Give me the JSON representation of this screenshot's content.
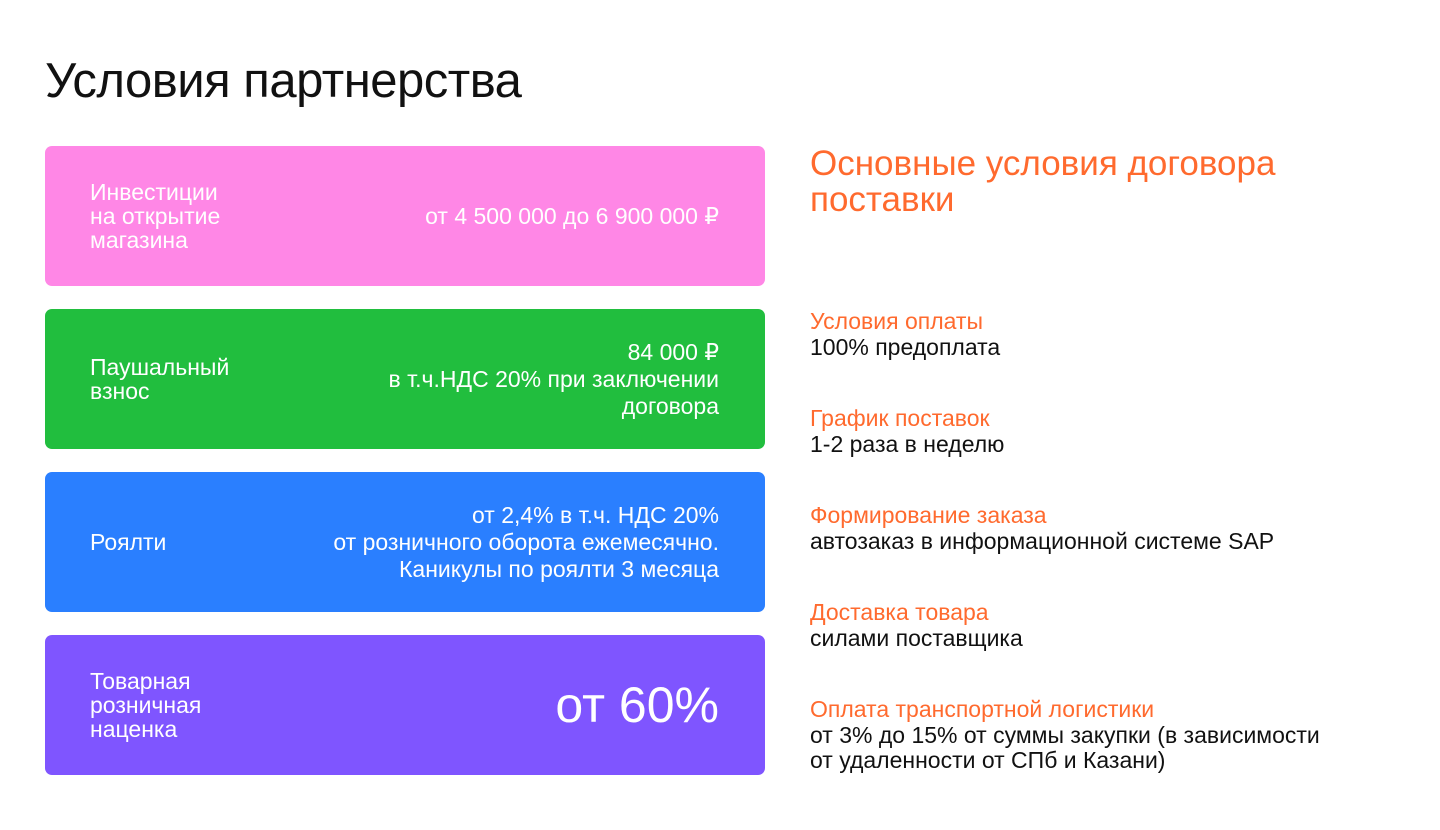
{
  "page": {
    "title": "Условия партнерства"
  },
  "colors": {
    "accent": "#FF6A2E",
    "card_pink": "#FF87E6",
    "card_green": "#21BE3E",
    "card_blue": "#2A7FFF",
    "card_purple": "#7F55FF"
  },
  "cards": [
    {
      "label": "Инвестиции\nна открытие\nмагазина",
      "value": "от 4 500 000 до 6 900 000 ₽",
      "color": "#FF87E6"
    },
    {
      "label": "Паушальный\nвзнос",
      "value": "84 000 ₽\nв т.ч.НДС 20% при заключении\nдоговора",
      "color": "#21BE3E"
    },
    {
      "label": "Роялти",
      "value": "от 2,4% в т.ч. НДС 20%\nот розничного оборота ежемесячно.\nКаникулы по роялти 3 месяца",
      "color": "#2A7FFF"
    },
    {
      "label": "Товарная\nрозничная\nнаценка",
      "value": "от 60%",
      "color": "#7F55FF"
    }
  ],
  "conditions": {
    "title": "Основные условия договора\nпоставки",
    "items": [
      {
        "label": "Условия оплаты",
        "value": "100% предоплата"
      },
      {
        "label": "График поставок",
        "value": "1-2 раза в неделю"
      },
      {
        "label": "Формирование заказа",
        "value": "автозаказ в информационной системе SAP"
      },
      {
        "label": "Доставка товара",
        "value": "силами поставщика"
      },
      {
        "label": "Оплата транспортной логистики",
        "value": "от 3% до 15% от суммы закупки (в зависимости\nот удаленности от СПб и Казани)"
      }
    ]
  }
}
